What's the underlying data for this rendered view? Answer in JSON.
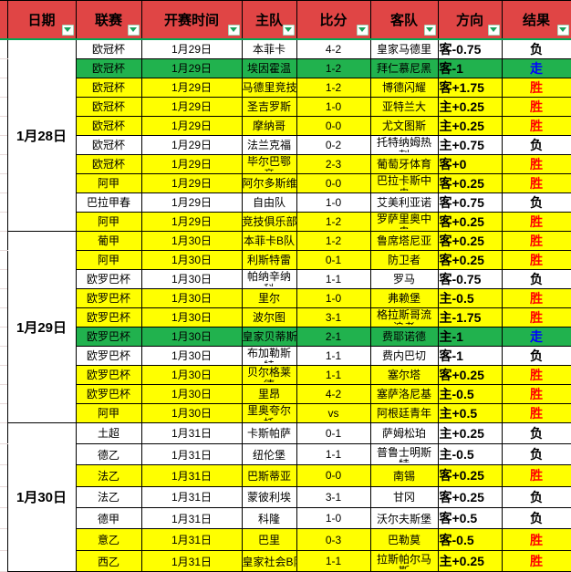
{
  "columns": [
    {
      "key": "date",
      "label": "日期"
    },
    {
      "key": "league",
      "label": "联赛"
    },
    {
      "key": "time",
      "label": "开赛时间"
    },
    {
      "key": "home",
      "label": "主队"
    },
    {
      "key": "score",
      "label": "比分"
    },
    {
      "key": "away",
      "label": "客队"
    },
    {
      "key": "direction",
      "label": "方向"
    },
    {
      "key": "result",
      "label": "结果"
    }
  ],
  "filter_icon": "chevron-down-icon",
  "colors": {
    "header_bg": "#E04545",
    "row_win_bg": "#FFFF00",
    "row_push_bg": "#21B24E",
    "row_lose_bg": "#FFFFFF",
    "win_text": "#FF0000",
    "push_text": "#0000FF",
    "lose_text": "#000000",
    "header_underline": "#00A653",
    "filter_triangle": "#18A05A"
  },
  "groups": [
    {
      "date": "1月28日",
      "rows": [
        {
          "league": "欧冠杯",
          "time": "1月29日",
          "home": "本菲卡",
          "score": "4-2",
          "away": "皇家马德里",
          "direction": "客-0.75",
          "result": "负",
          "bg": "white"
        },
        {
          "league": "欧冠杯",
          "time": "1月29日",
          "home": "埃因霍温",
          "score": "1-2",
          "away": "拜仁慕尼黑",
          "direction": "客-1",
          "result": "走",
          "bg": "green"
        },
        {
          "league": "欧冠杯",
          "time": "1月29日",
          "home": "马德里竞技",
          "score": "1-2",
          "away": "博德闪耀",
          "direction": "客+1.75",
          "result": "胜",
          "bg": "yellow"
        },
        {
          "league": "欧冠杯",
          "time": "1月29日",
          "home": "圣吉罗斯",
          "score": "1-0",
          "away": "亚特兰大",
          "direction": "主+0.25",
          "result": "胜",
          "bg": "yellow"
        },
        {
          "league": "欧冠杯",
          "time": "1月29日",
          "home": "摩纳哥",
          "score": "0-0",
          "away": "尤文图斯",
          "direction": "主+0.25",
          "result": "胜",
          "bg": "yellow"
        },
        {
          "league": "欧冠杯",
          "time": "1月29日",
          "home": "法兰克福",
          "score": "0-2",
          "away": "托特纳姆热刺",
          "away_wrap": 5,
          "direction": "主+0.75",
          "result": "负",
          "bg": "white"
        },
        {
          "league": "欧冠杯",
          "time": "1月29日",
          "home": "毕尔巴鄂竞技",
          "home_wrap": 5,
          "score": "2-3",
          "away": "葡萄牙体育",
          "direction": "客+0",
          "result": "胜",
          "bg": "yellow"
        },
        {
          "league": "阿甲",
          "time": "1月29日",
          "home": "阿尔多斯维",
          "score": "0-0",
          "away": "巴拉卡斯中央",
          "away_wrap": 5,
          "direction": "客+0.25",
          "result": "胜",
          "bg": "yellow"
        },
        {
          "league": "巴拉甲春",
          "time": "1月29日",
          "home": "自由队",
          "score": "1-0",
          "away": "艾美利亚诺",
          "direction": "客+0.75",
          "result": "负",
          "bg": "white"
        },
        {
          "league": "阿甲",
          "time": "1月29日",
          "home": "竞技俱乐部",
          "score": "1-2",
          "away": "罗萨里奥中央",
          "away_wrap": 5,
          "direction": "客+0.25",
          "result": "胜",
          "bg": "yellow"
        }
      ]
    },
    {
      "date": "1月29日",
      "rows": [
        {
          "league": "葡甲",
          "time": "1月30日",
          "home": "本菲卡B队",
          "score": "1-2",
          "away": "鲁席塔尼亚",
          "direction": "客+0.25",
          "result": "胜",
          "bg": "yellow"
        },
        {
          "league": "阿甲",
          "time": "1月30日",
          "home": "利斯特雷",
          "score": "0-1",
          "away": "防卫者",
          "direction": "客+0.25",
          "result": "胜",
          "bg": "yellow"
        },
        {
          "league": "欧罗巴杯",
          "time": "1月30日",
          "home": "帕纳辛纳科斯",
          "home_wrap": 5,
          "score": "1-1",
          "away": "罗马",
          "direction": "客-0.75",
          "result": "负",
          "bg": "white"
        },
        {
          "league": "欧罗巴杯",
          "time": "1月30日",
          "home": "里尔",
          "score": "1-0",
          "away": "弗赖堡",
          "direction": "主-0.5",
          "result": "胜",
          "bg": "yellow"
        },
        {
          "league": "欧罗巴杯",
          "time": "1月30日",
          "home": "波尔图",
          "score": "3-1",
          "away": "格拉斯哥流浪者",
          "away_wrap": 5,
          "direction": "主-1.75",
          "result": "胜",
          "bg": "yellow"
        },
        {
          "league": "欧罗巴杯",
          "time": "1月30日",
          "home": "皇家贝蒂斯",
          "score": "2-1",
          "away": "费耶诺德",
          "direction": "主-1",
          "result": "走",
          "bg": "green"
        },
        {
          "league": "欧罗巴杯",
          "time": "1月30日",
          "home": "布加勒斯特星队",
          "home_wrap": 5,
          "score": "1-1",
          "away": "费内巴切",
          "direction": "客-1",
          "result": "负",
          "bg": "white"
        },
        {
          "league": "欧罗巴杯",
          "time": "1月30日",
          "home": "贝尔格莱德红星",
          "home_wrap": 5,
          "score": "1-1",
          "away": "塞尔塔",
          "direction": "客+0.25",
          "result": "胜",
          "bg": "yellow"
        },
        {
          "league": "欧罗巴杯",
          "time": "1月30日",
          "home": "里昂",
          "score": "4-2",
          "away": "塞萨洛尼基",
          "direction": "主-0.5",
          "result": "胜",
          "bg": "yellow"
        },
        {
          "league": "阿甲",
          "time": "1月30日",
          "home": "里奥夸尔托学生",
          "home_wrap": 5,
          "score": "vs",
          "away": "阿根廷青年",
          "direction": "主+0.5",
          "result": "胜",
          "bg": "yellow"
        }
      ]
    },
    {
      "date": "1月30日",
      "rows": [
        {
          "league": "土超",
          "time": "1月31日",
          "home": "卡斯帕萨",
          "score": "0-1",
          "away": "萨姆松珀",
          "direction": "主+0.25",
          "result": "负",
          "bg": "white"
        },
        {
          "league": "德乙",
          "time": "1月31日",
          "home": "纽伦堡",
          "score": "1-1",
          "away": "普鲁士明斯特",
          "away_wrap": 5,
          "direction": "主-0.5",
          "result": "负",
          "bg": "white"
        },
        {
          "league": "法乙",
          "time": "1月31日",
          "home": "巴斯蒂亚",
          "score": "0-0",
          "away": "南锡",
          "direction": "客+0.25",
          "result": "胜",
          "bg": "yellow"
        },
        {
          "league": "法乙",
          "time": "1月31日",
          "home": "蒙彼利埃",
          "score": "3-1",
          "away": "甘冈",
          "direction": "客+0.25",
          "result": "负",
          "bg": "white"
        },
        {
          "league": "德甲",
          "time": "1月31日",
          "home": "科隆",
          "score": "1-0",
          "away": "沃尔夫斯堡",
          "direction": "客+0.5",
          "result": "负",
          "bg": "white"
        },
        {
          "league": "意乙",
          "time": "1月31日",
          "home": "巴里",
          "score": "0-3",
          "away": "巴勒莫",
          "direction": "客-0.5",
          "result": "胜",
          "bg": "yellow"
        },
        {
          "league": "西乙",
          "time": "1月31日",
          "home": "皇家社会B队",
          "score": "1-1",
          "away": "拉斯帕尔马斯",
          "away_wrap": 5,
          "direction": "主+0.25",
          "result": "胜",
          "bg": "yellow"
        }
      ]
    }
  ]
}
